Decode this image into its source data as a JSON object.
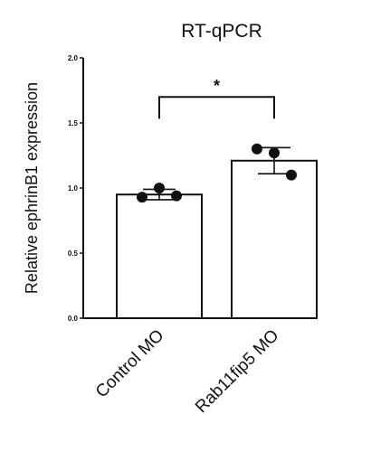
{
  "chart_data": {
    "type": "bar",
    "title": "RT-qPCR",
    "xlabel": "",
    "ylabel": "Relative ephrinB1 expression",
    "ylim": [
      0,
      2.0
    ],
    "yticks": [
      "0.0",
      "0.5",
      "1.0",
      "1.5",
      "2.0"
    ],
    "categories": [
      "Control MO",
      "Rab11fip5 MO"
    ],
    "values": [
      0.95,
      1.21
    ],
    "error": [
      0.04,
      0.1
    ],
    "points": [
      [
        0.93,
        1.0,
        0.94
      ],
      [
        1.3,
        1.27,
        1.1
      ]
    ],
    "significance": {
      "between": [
        0,
        1
      ],
      "label": "*",
      "y": 1.7
    },
    "bar_fill": "#ffffff",
    "bar_stroke": "#111111",
    "point_color": "#111111"
  }
}
